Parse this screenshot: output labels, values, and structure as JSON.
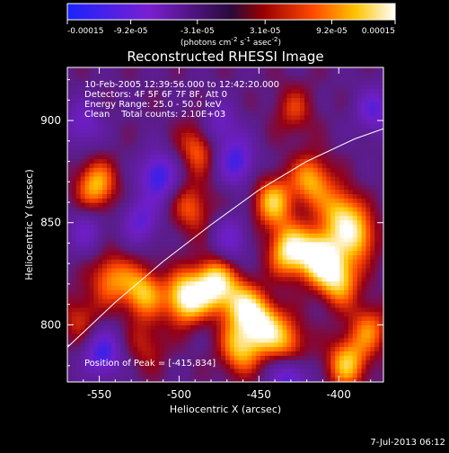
{
  "chart_data": {
    "type": "heatmap",
    "title": "Reconstructed RHESSI Image",
    "xlabel": "Heliocentric X (arcsec)",
    "ylabel": "Heliocentric Y (arcsec)",
    "xlim": [
      -570,
      -372
    ],
    "ylim": [
      772,
      926
    ],
    "x_ticks": [
      -550,
      -500,
      -450,
      -400
    ],
    "x_tick_labels": [
      "-550",
      "-500",
      "-450",
      "-400"
    ],
    "y_ticks": [
      800,
      850,
      900
    ],
    "y_tick_labels": [
      "800",
      "850",
      "900"
    ],
    "colorbar": {
      "min": -0.00015,
      "max": 0.00015,
      "tick_values": [
        -0.00015,
        -9.2e-05,
        -3.1e-05,
        3.1e-05,
        9.2e-05,
        0.00015
      ],
      "tick_labels": [
        "-0.00015",
        "-9.2e-05",
        "-3.1e-05",
        "3.1e-05",
        "9.2e-05",
        "0.00015"
      ],
      "units_parts": [
        "(photons cm",
        "-2",
        " s",
        "-1",
        " asec",
        "-2",
        ")"
      ]
    },
    "info_lines": [
      "10-Feb-2005 12:39:56.000 to 12:42:20.000",
      "Detectors: 4F 5F 6F 7F 8F, Att 0",
      "Energy Range: 25.0 - 50.0 keV",
      "Clean    Total counts: 2.10E+03"
    ],
    "peak_label": "Position of Peak = [-415,834]",
    "peak_position": [
      -415,
      834
    ],
    "limb_curve": {
      "x": [
        -570,
        -540,
        -510,
        -480,
        -450,
        -420,
        -390,
        -372
      ],
      "y": [
        789,
        811,
        831,
        849,
        866,
        880,
        891,
        896
      ]
    },
    "hot_regions": [
      {
        "x": -496,
        "y": 813,
        "level": 1.0
      },
      {
        "x": -478,
        "y": 820,
        "level": 0.95
      },
      {
        "x": -523,
        "y": 816,
        "level": 0.75
      },
      {
        "x": -543,
        "y": 823,
        "level": 0.6
      },
      {
        "x": -461,
        "y": 810,
        "level": 0.7
      },
      {
        "x": -431,
        "y": 836,
        "level": 0.9
      },
      {
        "x": -412,
        "y": 834,
        "level": 1.0
      },
      {
        "x": -400,
        "y": 822,
        "level": 0.8
      },
      {
        "x": -448,
        "y": 800,
        "level": 0.85
      },
      {
        "x": -462,
        "y": 788,
        "level": 0.7
      },
      {
        "x": -441,
        "y": 860,
        "level": 0.75
      },
      {
        "x": -417,
        "y": 871,
        "level": 0.7
      },
      {
        "x": -399,
        "y": 855,
        "level": 0.7
      },
      {
        "x": -388,
        "y": 843,
        "level": 0.7
      },
      {
        "x": -395,
        "y": 781,
        "level": 0.75
      },
      {
        "x": -381,
        "y": 798,
        "level": 0.55
      },
      {
        "x": -552,
        "y": 868,
        "level": 0.75
      },
      {
        "x": -488,
        "y": 887,
        "level": 0.55
      },
      {
        "x": -492,
        "y": 857,
        "level": 0.5
      },
      {
        "x": -428,
        "y": 905,
        "level": 0.4
      },
      {
        "x": -562,
        "y": 803,
        "level": 0.4
      },
      {
        "x": -520,
        "y": 790,
        "level": 0.35
      },
      {
        "x": -432,
        "y": 791,
        "level": 0.6
      }
    ],
    "cold_regions": [
      {
        "x": -513,
        "y": 873,
        "level": 0.85
      },
      {
        "x": -548,
        "y": 786,
        "level": 0.8
      },
      {
        "x": -464,
        "y": 880,
        "level": 0.75
      },
      {
        "x": -431,
        "y": 773,
        "level": 0.75
      },
      {
        "x": -475,
        "y": 897,
        "level": 0.5
      },
      {
        "x": -560,
        "y": 898,
        "level": 0.5
      },
      {
        "x": -378,
        "y": 905,
        "level": 0.6
      },
      {
        "x": -524,
        "y": 851,
        "level": 0.6
      },
      {
        "x": -468,
        "y": 842,
        "level": 0.5
      },
      {
        "x": -558,
        "y": 846,
        "level": 0.45
      }
    ]
  },
  "footer": {
    "date": "7-Jul-2013 06:12"
  }
}
